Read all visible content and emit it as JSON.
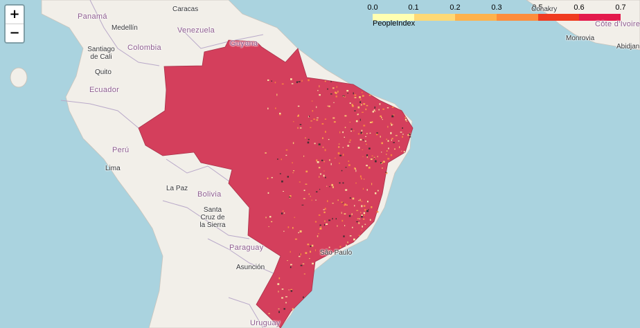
{
  "zoom": {
    "in_label": "+",
    "out_label": "−"
  },
  "legend": {
    "title": "PeopleIndex",
    "ticks": [
      "0.0",
      "0.1",
      "0.2",
      "0.3",
      "0.5",
      "0.6",
      "0.7"
    ],
    "colors": [
      "#ffffb2",
      "#fed976",
      "#feb24c",
      "#fd8d3c",
      "#f03b20",
      "#e31a4c"
    ]
  },
  "colors": {
    "ocean": "#aad3df",
    "land": "#f2efe9",
    "brazil": "#d43f5c",
    "border": "#b9a9c9"
  },
  "labels": {
    "panama": "Panamá",
    "caracas": "Caracas",
    "medellin": "Medellín",
    "venezuela": "Venezuela",
    "santiago_cali": "Santiago de Cali",
    "colombia": "Colombia",
    "guyana": "Guyana",
    "quito": "Quito",
    "ecuador": "Ecuador",
    "peru": "Perú",
    "lima": "Lima",
    "la_paz": "La Paz",
    "bolivia": "Bolivia",
    "santa_cruz": "Santa Cruz de la Sierra",
    "paraguay": "Paraguay",
    "asuncion": "Asunción",
    "uruguay": "Uruguay",
    "sao_paulo": "São Paulo",
    "conakry": "Conakry",
    "cote_ivoire": "Côte d'Ivoire",
    "monrovia": "Monrovia",
    "abidjan": "Abidjan"
  }
}
